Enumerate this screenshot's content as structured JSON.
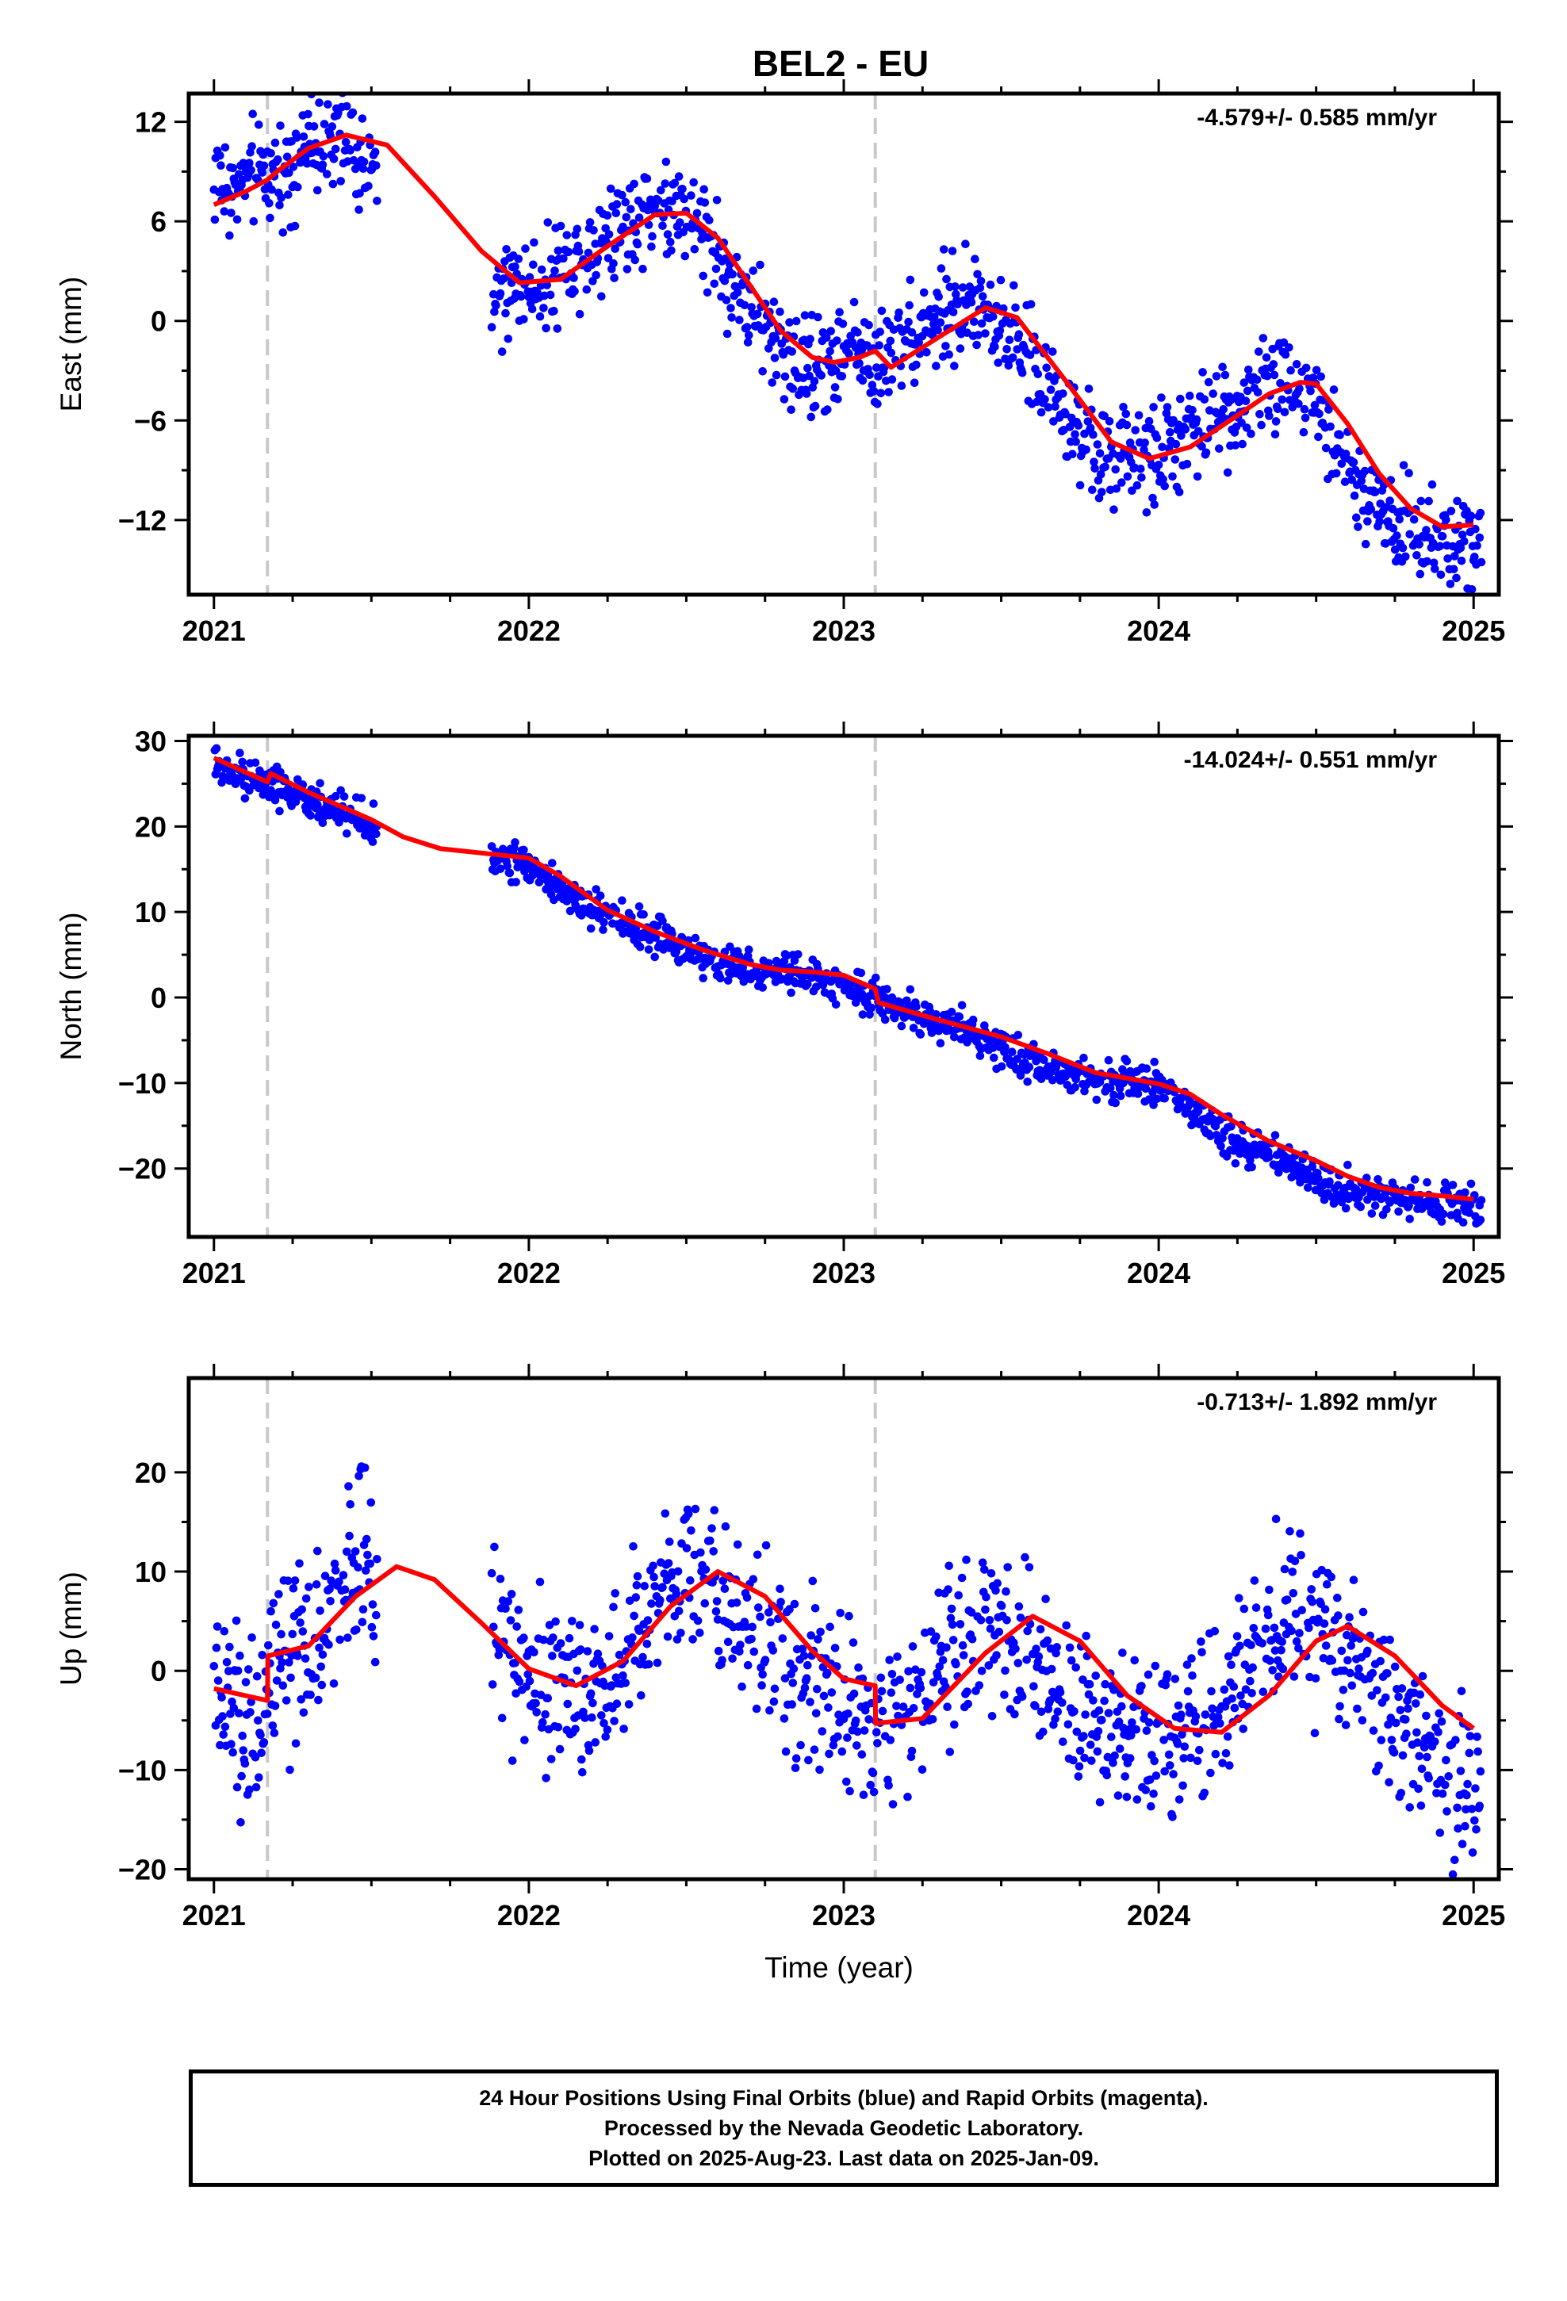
{
  "title": "BEL2 - EU",
  "xlabel": "Time (year)",
  "colors": {
    "points": "#0000ff",
    "fit": "#ff0000",
    "equipment_change": "#c8c8c8",
    "axes": "#000000"
  },
  "x_ticks": [
    "2021",
    "2022",
    "2023",
    "2024",
    "2025"
  ],
  "footer": {
    "line1": "24 Hour Positions Using Final Orbits (blue) and Rapid Orbits (magenta).",
    "line2": "Processed by the Nevada Geodetic Laboratory.",
    "line3": "Plotted on 2025-Aug-23. Last data on 2025-Jan-09."
  },
  "chart_data": [
    {
      "type": "scatter",
      "ylabel": "East (mm)",
      "rate_label": "-4.579+/- 0.585 mm/yr",
      "xlim": [
        2020.92,
        2025.08
      ],
      "ylim": [
        -16.5,
        13.7
      ],
      "y_ticks": [
        12,
        6,
        0,
        -6,
        -12
      ],
      "y_tick_labels": [
        "12",
        "6",
        "0",
        "−6",
        "−12"
      ],
      "equipment_changes": [
        2021.17,
        2023.1
      ],
      "data_gap": [
        2021.52,
        2021.88
      ],
      "series": [
        {
          "name": "Final Orbits",
          "style": "points",
          "x": [
            2021.0,
            2021.05,
            2021.1,
            2021.15,
            2021.2,
            2021.25,
            2021.3,
            2021.35,
            2021.4,
            2021.45,
            2021.5,
            2021.88,
            2021.95,
            2022.0,
            2022.05,
            2022.1,
            2022.15,
            2022.2,
            2022.25,
            2022.3,
            2022.35,
            2022.4,
            2022.45,
            2022.5,
            2022.55,
            2022.6,
            2022.65,
            2022.7,
            2022.75,
            2022.8,
            2022.85,
            2022.9,
            2022.95,
            2023.0,
            2023.05,
            2023.1,
            2023.15,
            2023.2,
            2023.25,
            2023.3,
            2023.35,
            2023.4,
            2023.45,
            2023.5,
            2023.55,
            2023.6,
            2023.65,
            2023.7,
            2023.75,
            2023.8,
            2023.85,
            2023.9,
            2023.95,
            2024.0,
            2024.05,
            2024.1,
            2024.15,
            2024.2,
            2024.25,
            2024.3,
            2024.35,
            2024.4,
            2024.45,
            2024.5,
            2024.55,
            2024.6,
            2024.65,
            2024.7,
            2024.75,
            2024.8,
            2024.85,
            2024.9,
            2024.95,
            2025.0
          ],
          "y": [
            8.5,
            7.8,
            8.4,
            8.8,
            9.0,
            9.8,
            10.5,
            11.0,
            10.8,
            10.0,
            8.8,
            1.5,
            2.0,
            2.2,
            2.4,
            3.0,
            3.8,
            4.6,
            5.4,
            6.0,
            6.5,
            6.7,
            6.8,
            6.5,
            5.6,
            4.0,
            2.2,
            0.5,
            -0.6,
            -1.6,
            -2.2,
            -2.6,
            -2.4,
            -2.0,
            -1.6,
            -2.5,
            -1.8,
            -0.9,
            -0.2,
            0.4,
            0.8,
            0.9,
            0.7,
            0.1,
            -1.0,
            -2.8,
            -4.2,
            -5.8,
            -6.9,
            -7.8,
            -8.3,
            -8.4,
            -8.2,
            -7.9,
            -7.4,
            -6.9,
            -6.3,
            -5.6,
            -5.0,
            -4.4,
            -3.8,
            -3.5,
            -3.6,
            -4.6,
            -6.6,
            -8.6,
            -10.2,
            -11.4,
            -12.2,
            -12.8,
            -13.2,
            -13.2,
            -12.9,
            -12.5
          ]
        },
        {
          "name": "Model",
          "style": "line",
          "x": [
            2021.0,
            2021.1,
            2021.17,
            2021.2,
            2021.3,
            2021.42,
            2021.55,
            2021.7,
            2021.85,
            2021.97,
            2022.1,
            2022.25,
            2022.4,
            2022.5,
            2022.6,
            2022.7,
            2022.8,
            2022.9,
            2022.97,
            2023.05,
            2023.1,
            2023.15,
            2023.3,
            2023.45,
            2023.55,
            2023.7,
            2023.85,
            2023.97,
            2024.1,
            2024.25,
            2024.35,
            2024.45,
            2024.5,
            2024.6,
            2024.7,
            2024.8,
            2024.9,
            2025.0
          ],
          "y": [
            7.0,
            7.8,
            8.5,
            9.0,
            10.4,
            11.2,
            10.6,
            7.5,
            4.2,
            2.3,
            2.5,
            4.5,
            6.4,
            6.5,
            5.0,
            2.2,
            -0.6,
            -2.2,
            -2.5,
            -2.2,
            -1.8,
            -2.8,
            -1.0,
            0.8,
            0.2,
            -3.5,
            -7.3,
            -8.3,
            -7.6,
            -5.7,
            -4.4,
            -3.7,
            -3.8,
            -6.2,
            -9.2,
            -11.3,
            -12.4,
            -12.3
          ]
        }
      ]
    },
    {
      "type": "scatter",
      "ylabel": "North (mm)",
      "rate_label": "-14.024+/- 0.551 mm/yr",
      "xlim": [
        2020.92,
        2025.08
      ],
      "ylim": [
        -28.0,
        30.6
      ],
      "y_ticks": [
        30,
        20,
        10,
        0,
        -10,
        -20
      ],
      "y_tick_labels": [
        "30",
        "20",
        "10",
        "0",
        "−10",
        "−20"
      ],
      "equipment_changes": [
        2021.17,
        2023.1
      ],
      "data_gap": [
        2021.52,
        2021.88
      ],
      "series": [
        {
          "name": "Final Orbits",
          "style": "points",
          "x": [
            2021.0,
            2021.05,
            2021.1,
            2021.15,
            2021.2,
            2021.25,
            2021.3,
            2021.35,
            2021.4,
            2021.45,
            2021.5,
            2021.88,
            2021.95,
            2022.0,
            2022.05,
            2022.1,
            2022.15,
            2022.2,
            2022.25,
            2022.3,
            2022.35,
            2022.4,
            2022.45,
            2022.5,
            2022.55,
            2022.6,
            2022.65,
            2022.7,
            2022.75,
            2022.8,
            2022.85,
            2022.9,
            2022.95,
            2023.0,
            2023.05,
            2023.1,
            2023.15,
            2023.2,
            2023.25,
            2023.3,
            2023.35,
            2023.4,
            2023.45,
            2023.5,
            2023.55,
            2023.6,
            2023.65,
            2023.7,
            2023.75,
            2023.8,
            2023.85,
            2023.9,
            2023.95,
            2024.0,
            2024.05,
            2024.1,
            2024.15,
            2024.2,
            2024.25,
            2024.3,
            2024.35,
            2024.4,
            2024.45,
            2024.5,
            2024.55,
            2024.6,
            2024.65,
            2024.7,
            2024.75,
            2024.8,
            2024.85,
            2024.9,
            2024.95,
            2025.0
          ],
          "y": [
            27.5,
            26.8,
            26.0,
            25.0,
            24.6,
            24.0,
            23.2,
            22.3,
            21.7,
            21.0,
            20.2,
            16.2,
            16.0,
            15.4,
            14.2,
            12.8,
            11.6,
            10.4,
            9.4,
            8.6,
            7.8,
            7.0,
            6.3,
            5.6,
            4.8,
            4.0,
            3.5,
            3.2,
            3.0,
            2.9,
            2.8,
            2.4,
            1.9,
            1.4,
            0.9,
            0.0,
            -0.8,
            -1.6,
            -2.2,
            -2.9,
            -3.6,
            -4.2,
            -4.9,
            -5.8,
            -6.8,
            -7.8,
            -8.5,
            -8.9,
            -9.2,
            -9.4,
            -9.6,
            -9.7,
            -10.0,
            -10.6,
            -11.6,
            -13.2,
            -14.6,
            -15.8,
            -16.8,
            -17.6,
            -18.6,
            -19.6,
            -20.4,
            -21.2,
            -22.0,
            -22.6,
            -23.0,
            -23.2,
            -23.4,
            -23.5,
            -23.6,
            -23.8,
            -24.0,
            -24.2
          ]
        },
        {
          "name": "Model",
          "style": "line",
          "x": [
            2021.0,
            2021.17,
            2021.18,
            2021.3,
            2021.5,
            2021.6,
            2021.72,
            2021.85,
            2022.0,
            2022.1,
            2022.25,
            2022.4,
            2022.55,
            2022.7,
            2022.8,
            2022.9,
            2023.0,
            2023.1,
            2023.11,
            2023.3,
            2023.5,
            2023.65,
            2023.8,
            2024.0,
            2024.1,
            2024.2,
            2024.35,
            2024.5,
            2024.6,
            2024.7,
            2024.8,
            2024.9,
            2025.0
          ],
          "y": [
            28.0,
            25.2,
            26.2,
            24.0,
            20.8,
            18.8,
            17.4,
            16.9,
            16.3,
            14.2,
            10.2,
            7.7,
            5.6,
            3.9,
            3.2,
            3.0,
            2.6,
            1.0,
            -0.6,
            -2.6,
            -4.6,
            -6.6,
            -8.8,
            -10.1,
            -11.3,
            -13.7,
            -16.8,
            -19.1,
            -20.9,
            -22.2,
            -22.9,
            -23.2,
            -23.6
          ]
        }
      ]
    },
    {
      "type": "scatter",
      "ylabel": "Up (mm)",
      "rate_label": "-0.713+/- 1.892 mm/yr",
      "xlim": [
        2020.92,
        2025.08
      ],
      "ylim": [
        -21.0,
        29.5
      ],
      "y_ticks": [
        20,
        10,
        0,
        -10,
        -20
      ],
      "y_tick_labels": [
        "20",
        "10",
        "0",
        "−10",
        "−20"
      ],
      "equipment_changes": [
        2021.17,
        2023.1
      ],
      "data_gap": [
        2021.52,
        2021.88
      ],
      "series": [
        {
          "name": "Final Orbits",
          "style": "points",
          "x": [
            2021.0,
            2021.05,
            2021.1,
            2021.15,
            2021.2,
            2021.25,
            2021.3,
            2021.35,
            2021.4,
            2021.45,
            2021.5,
            2021.88,
            2021.95,
            2022.0,
            2022.05,
            2022.1,
            2022.15,
            2022.2,
            2022.25,
            2022.3,
            2022.35,
            2022.4,
            2022.45,
            2022.5,
            2022.55,
            2022.6,
            2022.65,
            2022.7,
            2022.75,
            2022.8,
            2022.85,
            2022.9,
            2022.95,
            2023.0,
            2023.05,
            2023.1,
            2023.15,
            2023.2,
            2023.25,
            2023.3,
            2023.35,
            2023.4,
            2023.45,
            2023.5,
            2023.55,
            2023.6,
            2023.65,
            2023.7,
            2023.75,
            2023.8,
            2023.85,
            2023.9,
            2023.95,
            2024.0,
            2024.05,
            2024.1,
            2024.15,
            2024.2,
            2024.25,
            2024.3,
            2024.35,
            2024.4,
            2024.45,
            2024.5,
            2024.55,
            2024.6,
            2024.65,
            2024.7,
            2024.75,
            2024.8,
            2024.85,
            2024.9,
            2024.95,
            2025.0
          ],
          "y": [
            -2.0,
            -4.0,
            -5.0,
            -3.5,
            -1.0,
            0.5,
            2.0,
            5.0,
            8.5,
            11.0,
            12.5,
            3.0,
            1.5,
            0.0,
            -1.0,
            -2.0,
            -2.5,
            -2.0,
            -0.5,
            2.0,
            5.0,
            8.0,
            10.5,
            11.0,
            9.5,
            8.5,
            6.0,
            3.5,
            1.5,
            0.5,
            -1.0,
            -2.0,
            -3.0,
            -3.5,
            -4.0,
            -5.5,
            -4.5,
            -3.0,
            -1.5,
            0.5,
            2.0,
            3.5,
            4.5,
            5.0,
            3.5,
            1.0,
            -1.5,
            -3.0,
            -4.5,
            -5.5,
            -6.5,
            -7.0,
            -7.5,
            -7.0,
            -6.5,
            -6.5,
            -6.0,
            -4.0,
            -1.5,
            1.0,
            3.5,
            5.0,
            6.0,
            5.5,
            4.0,
            2.0,
            0.0,
            -2.0,
            -4.0,
            -6.0,
            -7.5,
            -9.0,
            -11.0,
            -12.0
          ]
        },
        {
          "name": "Model",
          "style": "line",
          "x": [
            2021.0,
            2021.1,
            2021.17,
            2021.171,
            2021.3,
            2021.45,
            2021.58,
            2021.7,
            2021.85,
            2022.0,
            2022.15,
            2022.3,
            2022.45,
            2022.6,
            2022.75,
            2022.9,
            2023.0,
            2023.1,
            2023.101,
            2023.25,
            2023.45,
            2023.6,
            2023.75,
            2023.9,
            2024.05,
            2024.2,
            2024.35,
            2024.5,
            2024.6,
            2024.75,
            2024.9,
            2025.0
          ],
          "y": [
            -1.8,
            -2.5,
            -3.0,
            1.5,
            2.5,
            7.5,
            10.5,
            9.2,
            4.8,
            0.2,
            -1.5,
            1.0,
            6.5,
            10.0,
            7.5,
            2.0,
            -0.8,
            -1.5,
            -5.3,
            -4.8,
            1.8,
            5.5,
            3.0,
            -2.5,
            -5.8,
            -6.2,
            -2.5,
            3.0,
            4.5,
            1.5,
            -3.5,
            -5.8
          ]
        }
      ]
    }
  ]
}
